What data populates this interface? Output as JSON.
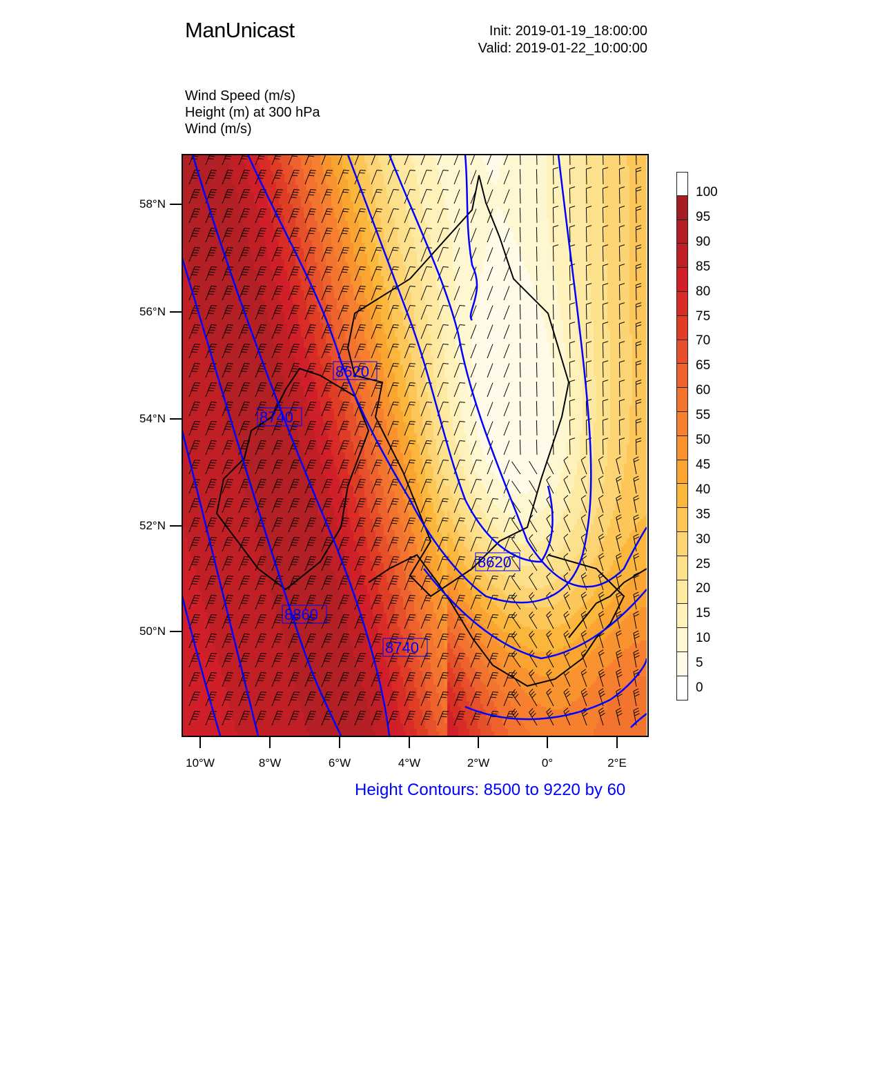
{
  "header": {
    "title": "ManUnicast",
    "init": "Init: 2019-01-19_18:00:00",
    "valid": "Valid: 2019-01-22_10:00:00",
    "desc_lines": [
      "Wind Speed   (m/s)",
      "Height   (m)     at   300 hPa",
      "Wind   (m/s)"
    ]
  },
  "axes": {
    "lat_labels": [
      "58°N",
      "56°N",
      "54°N",
      "52°N",
      "50°N"
    ],
    "lon_labels": [
      "10°W",
      "8°W",
      "6°W",
      "4°W",
      "2°W",
      "0°",
      "2°E"
    ]
  },
  "colorbar": {
    "labels": [
      "100",
      "95",
      "90",
      "85",
      "80",
      "75",
      "70",
      "65",
      "60",
      "55",
      "50",
      "45",
      "40",
      "35",
      "30",
      "25",
      "20",
      "15",
      "10",
      "5",
      "0"
    ],
    "colors": [
      "#ffffff",
      "#a51e22",
      "#b21f24",
      "#c11f26",
      "#d11f2a",
      "#d92c27",
      "#e03d26",
      "#e6502a",
      "#ee632d",
      "#f3742e",
      "#f68030",
      "#f89330",
      "#faa432",
      "#fbb63c",
      "#fcc658",
      "#fdd474",
      "#fde08c",
      "#fde9a2",
      "#fef1ba",
      "#fef7d2",
      "#fffbe8",
      "#ffffff"
    ]
  },
  "contour_labels": [
    "8620",
    "8740",
    "8620",
    "8860",
    "8740"
  ],
  "footer": "Height Contours: 8500 to 9220 by 60"
}
